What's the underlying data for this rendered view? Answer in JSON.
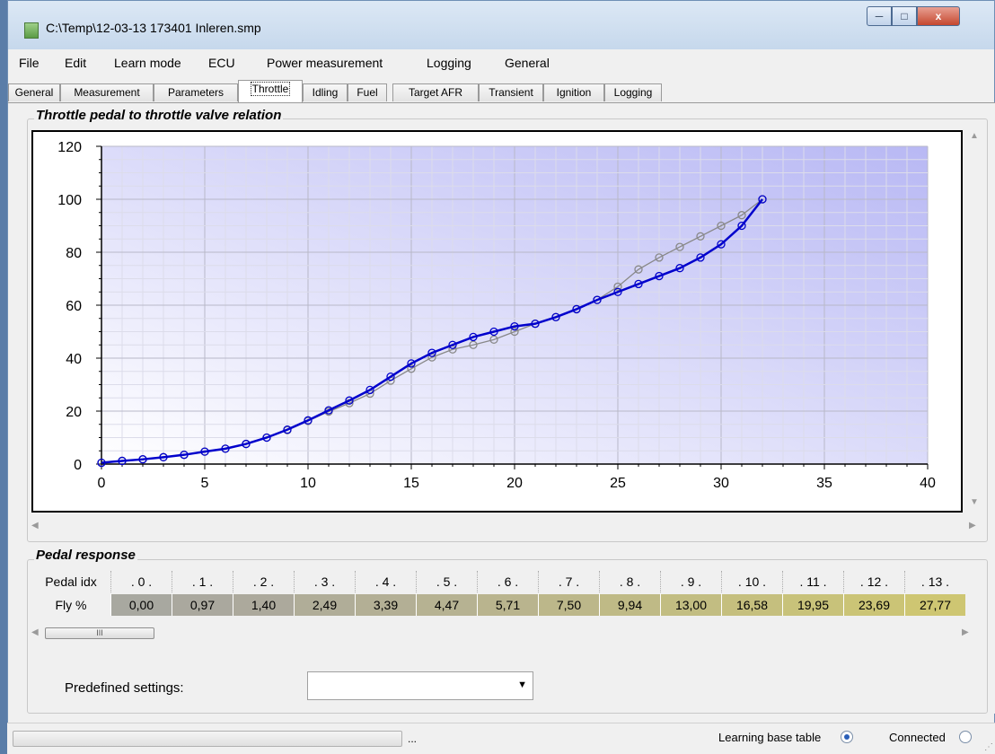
{
  "window": {
    "title": "C:\\Temp\\12-03-13 173401 Inleren.smp"
  },
  "controls": {
    "minimize": "─",
    "maximize": "□",
    "close": "x"
  },
  "menu": [
    "File",
    "Edit",
    "Learn mode",
    "ECU",
    "Power measurement",
    "Logging",
    "General"
  ],
  "tabs": [
    "General",
    "Measurement",
    "Parameters",
    "Throttle",
    "Idling",
    "Fuel",
    "Target AFR",
    "Transient",
    "Ignition",
    "Logging"
  ],
  "active_tab": "Throttle",
  "chart_section": {
    "title": "Throttle pedal to throttle valve relation"
  },
  "chart_data": {
    "type": "line",
    "title": "",
    "xlabel": "",
    "ylabel": "",
    "xlim": [
      0,
      40
    ],
    "ylim": [
      0,
      120
    ],
    "xticks": [
      "0",
      "5",
      "10",
      "15",
      "20",
      "25",
      "30",
      "35",
      "40"
    ],
    "yticks": [
      "0",
      "20",
      "40",
      "60",
      "80",
      "100",
      "120"
    ],
    "grid": true,
    "background": "gradient white to lavender",
    "series": [
      {
        "color": "#888888",
        "marker": "circle",
        "x": [
          0,
          1,
          2,
          3,
          4,
          5,
          6,
          7,
          8,
          9,
          10,
          11,
          12,
          13,
          14,
          15,
          16,
          17,
          18,
          19,
          20,
          21,
          22,
          23,
          24,
          25,
          26,
          27,
          28,
          29,
          30,
          31,
          32
        ],
        "y": [
          0.5,
          1.2,
          1.8,
          2.6,
          3.5,
          4.7,
          5.8,
          7.6,
          10,
          12.8,
          16.3,
          19.8,
          23,
          26.6,
          31.5,
          36,
          40.3,
          43.3,
          45,
          47,
          50,
          53,
          55.5,
          58.5,
          62,
          67,
          73.5,
          78,
          82,
          86,
          90,
          94,
          100
        ]
      },
      {
        "color": "#0000cc",
        "marker": "circle",
        "x": [
          0,
          1,
          2,
          3,
          4,
          5,
          6,
          7,
          8,
          9,
          10,
          11,
          12,
          13,
          14,
          15,
          16,
          17,
          18,
          19,
          20,
          21,
          22,
          23,
          24,
          25,
          26,
          27,
          28,
          29,
          30,
          31,
          32
        ],
        "y": [
          0.5,
          1.2,
          1.8,
          2.6,
          3.5,
          4.7,
          5.8,
          7.6,
          10,
          13,
          16.5,
          20.3,
          24,
          28,
          33,
          38,
          42,
          45,
          48,
          50,
          52,
          53,
          55.5,
          58.5,
          62,
          65,
          68,
          71,
          74,
          78,
          83,
          90,
          100
        ]
      }
    ]
  },
  "pedal_section": {
    "title": "Pedal response",
    "row_header_idx": "Pedal idx",
    "row_header_fly": "Fly %",
    "indices": [
      "0",
      "1",
      "2",
      "3",
      "4",
      "5",
      "6",
      "7",
      "8",
      "9",
      "10",
      "11",
      "12",
      "13"
    ],
    "values": [
      "0,00",
      "0,97",
      "1,40",
      "2,49",
      "3,39",
      "4,47",
      "5,71",
      "7,50",
      "9,94",
      "13,00",
      "16,58",
      "19,95",
      "23,69",
      "27,77"
    ],
    "cell_colors": [
      "#a8a8a0",
      "#aaa89e",
      "#aca99c",
      "#b0ad98",
      "#b3af95",
      "#b6b292",
      "#b9b48e",
      "#bcb78a",
      "#bfba86",
      "#c2bd82",
      "#c5bf7e",
      "#c8c27a",
      "#cbc476",
      "#cec672"
    ],
    "scroll_thumb": "III"
  },
  "predefined": {
    "label": "Predefined settings:",
    "value": ""
  },
  "status": {
    "dots": "...",
    "learning_label": "Learning base table",
    "learning_on": true,
    "connected_label": "Connected",
    "connected_on": false
  }
}
